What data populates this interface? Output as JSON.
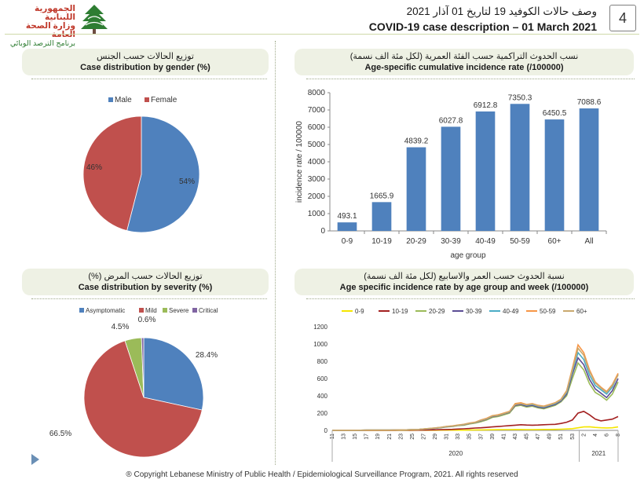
{
  "header": {
    "logo_line1": "الجمهورية اللبنانية",
    "logo_line2": "وزارة الصحة العامة",
    "logo_line3": "برنامج الترصد الوبائي",
    "title_ar": "وصف حالات الكوفيد 19 لتاريخ 01 آذار 2021",
    "title_en": "COVID-19 case description – 01 March 2021",
    "slide_number": "4",
    "logo_icon": "cedar-icon"
  },
  "colors": {
    "blue": "#4f81bd",
    "red": "#c0504d",
    "green": "#9bbb59",
    "purple": "#8064a2",
    "yellow": "#f5e600",
    "darkred": "#a32020",
    "olive": "#9bbb59",
    "navy": "#5b4c94",
    "teal": "#4bacc6",
    "orange": "#f79646",
    "tan": "#c9a96e"
  },
  "panels": {
    "gender": {
      "title_ar": "توزيع الحالات حسب الجنس",
      "title_en": "Case distribution by gender (%)"
    },
    "age": {
      "title_ar": "نسب الحدوث التراكمية حسب الفئة العمرية (لكل مئة الف نسمة)",
      "title_en": "Age-specific cumulative incidence rate (/100000)"
    },
    "severity": {
      "title_ar": "توزيع الحالات حسب المرض (%)",
      "title_en": "Case distribution by severity (%)"
    },
    "weekly": {
      "title_ar": "نسبة الحدوث حسب العمر والاسابيع (لكل مئة الف نسمة)",
      "title_en": "Age specific incidence rate by age group and week (/100000)"
    }
  },
  "chart_data": [
    {
      "id": "gender",
      "type": "pie",
      "labels": [
        "Male",
        "Female"
      ],
      "values": [
        54,
        46
      ],
      "value_labels": [
        "54%",
        "46%"
      ],
      "colors": [
        "#4f81bd",
        "#c0504d"
      ],
      "legend": "top"
    },
    {
      "id": "age",
      "type": "bar",
      "categories": [
        "0-9",
        "10-19",
        "20-29",
        "30-39",
        "40-49",
        "50-59",
        "60+",
        "All"
      ],
      "values": [
        493.1,
        1665.9,
        4839.2,
        6027.8,
        6912.8,
        7350.3,
        6450.5,
        7088.6
      ],
      "value_labels": [
        "493.1",
        "1665.9",
        "4839.2",
        "6027.8",
        "6912.8",
        "7350.3",
        "6450.5",
        "7088.6"
      ],
      "ylim": [
        0,
        8000
      ],
      "yticks": [
        "0",
        "1000",
        "2000",
        "3000",
        "4000",
        "5000",
        "6000",
        "7000",
        "8000"
      ],
      "xlabel": "age group",
      "ylabel": "incidence rate / 100000",
      "color": "#4f81bd"
    },
    {
      "id": "severity",
      "type": "pie",
      "labels": [
        "Asymptomatic",
        "Mild",
        "Severe",
        "Critical"
      ],
      "values": [
        28.4,
        66.5,
        4.5,
        0.6
      ],
      "value_labels": [
        "28.4%",
        "66.5%",
        "4.5%",
        "0.6%"
      ],
      "colors": [
        "#4f81bd",
        "#c0504d",
        "#9bbb59",
        "#8064a2"
      ],
      "legend": "top"
    },
    {
      "id": "weekly",
      "type": "line",
      "ylim": [
        0,
        1200
      ],
      "yticks": [
        "0",
        "200",
        "400",
        "600",
        "800",
        "1000",
        "1200"
      ],
      "x_labels": [
        "11",
        "13",
        "15",
        "17",
        "19",
        "21",
        "23",
        "25",
        "27",
        "29",
        "31",
        "33",
        "35",
        "37",
        "39",
        "41",
        "43",
        "45",
        "47",
        "49",
        "51",
        "53",
        "2",
        "4",
        "6",
        "8"
      ],
      "year_labels": [
        "2020",
        "2021"
      ],
      "series": [
        {
          "name": "0-9",
          "color": "#f5e600",
          "values": [
            0,
            0,
            0,
            0,
            0,
            0,
            0,
            0,
            0,
            0,
            0,
            0,
            1,
            1,
            1,
            2,
            2,
            2,
            2,
            3,
            3,
            3,
            3,
            3,
            4,
            5,
            5,
            6,
            7,
            8,
            9,
            9,
            10,
            10,
            9,
            9,
            10,
            11,
            11,
            12,
            14,
            16,
            20,
            30,
            40,
            42,
            35,
            30,
            28,
            30,
            40
          ]
        },
        {
          "name": "10-19",
          "color": "#a32020",
          "values": [
            0,
            0,
            0,
            0,
            0,
            0,
            1,
            1,
            1,
            1,
            1,
            1,
            2,
            2,
            3,
            3,
            4,
            5,
            6,
            8,
            10,
            12,
            15,
            18,
            22,
            27,
            30,
            35,
            40,
            45,
            50,
            55,
            60,
            65,
            62,
            60,
            62,
            65,
            68,
            70,
            80,
            95,
            120,
            200,
            220,
            180,
            130,
            110,
            120,
            130,
            160
          ]
        },
        {
          "name": "20-29",
          "color": "#9bbb59",
          "values": [
            0,
            1,
            1,
            1,
            1,
            2,
            3,
            3,
            3,
            3,
            3,
            4,
            5,
            6,
            8,
            10,
            15,
            20,
            25,
            30,
            40,
            45,
            55,
            60,
            75,
            85,
            100,
            120,
            150,
            160,
            180,
            200,
            280,
            290,
            270,
            280,
            260,
            250,
            270,
            290,
            330,
            400,
            600,
            780,
            700,
            540,
            440,
            400,
            350,
            420,
            560
          ]
        },
        {
          "name": "30-39",
          "color": "#5b4c94",
          "values": [
            0,
            1,
            1,
            1,
            1,
            2,
            3,
            3,
            3,
            3,
            3,
            4,
            5,
            6,
            8,
            10,
            15,
            20,
            25,
            32,
            42,
            48,
            58,
            65,
            80,
            90,
            110,
            130,
            160,
            170,
            190,
            210,
            290,
            300,
            280,
            290,
            270,
            260,
            280,
            300,
            340,
            420,
            650,
            840,
            760,
            590,
            480,
            430,
            380,
            460,
            600
          ]
        },
        {
          "name": "40-49",
          "color": "#4bacc6",
          "values": [
            0,
            1,
            1,
            1,
            1,
            2,
            3,
            3,
            3,
            3,
            3,
            4,
            5,
            6,
            8,
            10,
            15,
            20,
            26,
            34,
            44,
            50,
            60,
            68,
            82,
            92,
            115,
            135,
            165,
            175,
            195,
            215,
            300,
            310,
            290,
            300,
            280,
            270,
            290,
            310,
            350,
            440,
            680,
            900,
            820,
            640,
            520,
            470,
            420,
            500,
            650
          ]
        },
        {
          "name": "50-59",
          "color": "#f79646",
          "values": [
            0,
            1,
            1,
            1,
            1,
            2,
            3,
            3,
            3,
            3,
            3,
            4,
            5,
            6,
            8,
            10,
            16,
            22,
            28,
            36,
            46,
            52,
            62,
            70,
            85,
            95,
            120,
            140,
            170,
            180,
            200,
            220,
            310,
            320,
            300,
            310,
            290,
            280,
            300,
            320,
            360,
            460,
            720,
            990,
            900,
            700,
            560,
            500,
            450,
            530,
            660
          ]
        },
        {
          "name": "60+",
          "color": "#c9a96e",
          "values": [
            0,
            1,
            1,
            1,
            1,
            2,
            3,
            3,
            3,
            3,
            3,
            4,
            5,
            6,
            8,
            10,
            16,
            22,
            28,
            35,
            45,
            50,
            60,
            68,
            82,
            92,
            115,
            135,
            165,
            175,
            195,
            215,
            300,
            310,
            295,
            305,
            285,
            275,
            295,
            315,
            355,
            450,
            700,
            950,
            870,
            680,
            550,
            490,
            440,
            520,
            640
          ]
        }
      ],
      "legend": "top"
    }
  ],
  "footer": {
    "copyright": "® Copyright Lebanese Ministry of Public Health / Epidemiological Surveillance Program, 2021. All rights reserved",
    "play_icon": "play-icon"
  }
}
